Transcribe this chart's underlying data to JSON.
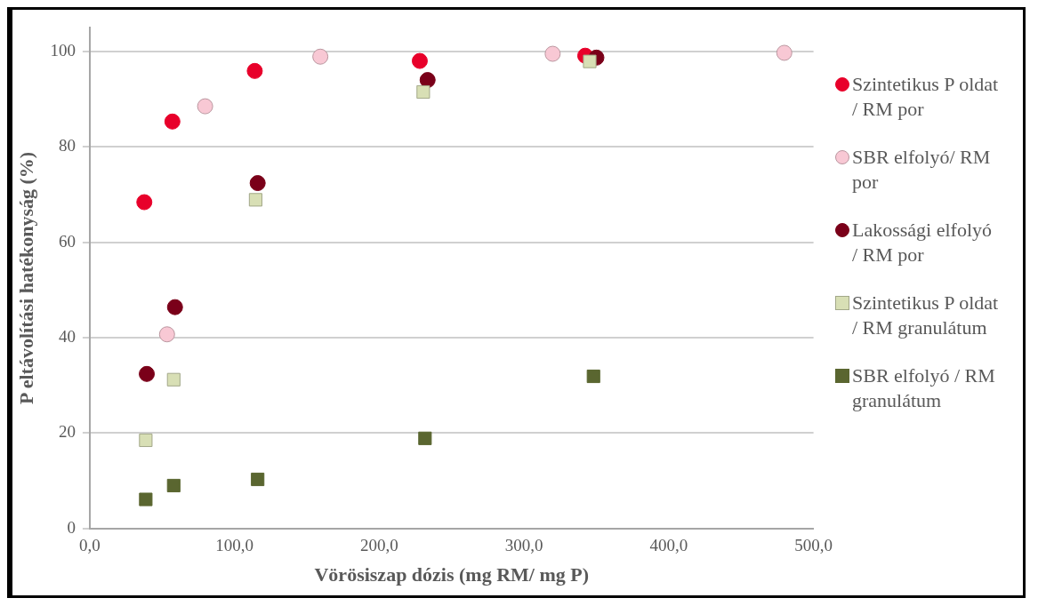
{
  "chart_data": {
    "type": "scatter",
    "xlabel": "Vörösiszap dózis (mg RM/ mg P)",
    "ylabel": "P eltávolítási hatékonyság (%)",
    "xlim": [
      0,
      500
    ],
    "xticks": [
      {
        "value": 0,
        "label": "0,0"
      },
      {
        "value": 100,
        "label": "100,0"
      },
      {
        "value": 200,
        "label": "200,0"
      },
      {
        "value": 300,
        "label": "300,0"
      },
      {
        "value": 400,
        "label": "400,0"
      },
      {
        "value": 500,
        "label": "500,0"
      }
    ],
    "ylim": [
      0,
      105
    ],
    "yticks": [
      0,
      20,
      40,
      60,
      80,
      100
    ],
    "grid": "y",
    "legend": "right",
    "series": [
      {
        "name": "Szintetikus P oldat / RM por",
        "color": "#e8002a",
        "marker": "circle",
        "x": [
          37.7,
          57.1,
          114,
          228,
          342.3
        ],
        "values": [
          68.4,
          85.3,
          95.9,
          98,
          99.1
        ]
      },
      {
        "name": "SBR elfolyó/ RM por",
        "color": "#f8c8d4",
        "marker": "circle",
        "x": [
          53.4,
          79.7,
          159.3,
          319.8,
          479.8
        ],
        "values": [
          40.7,
          88.5,
          98.9,
          99.5,
          99.7
        ]
      },
      {
        "name": "Lakossági elfolyó / RM por",
        "color": "#7a0019",
        "marker": "circle",
        "x": [
          39.4,
          58.9,
          116,
          233.4,
          350
        ],
        "values": [
          32.4,
          46.4,
          72.4,
          94,
          98.7
        ]
      },
      {
        "name": "Szintetikus P oldat / RM granulátum",
        "color": "#d8dfb5",
        "marker": "square",
        "x": [
          38.7,
          58,
          114.6,
          230.4,
          345.4
        ],
        "values": [
          18.5,
          31.2,
          68.9,
          91.5,
          97.9
        ]
      },
      {
        "name": "SBR elfolyó / RM granulátum",
        "color": "#5a6630",
        "marker": "square",
        "x": [
          38.7,
          58,
          116,
          231.6,
          348
        ],
        "values": [
          6.1,
          9,
          10.3,
          18.9,
          31.9
        ]
      }
    ]
  }
}
